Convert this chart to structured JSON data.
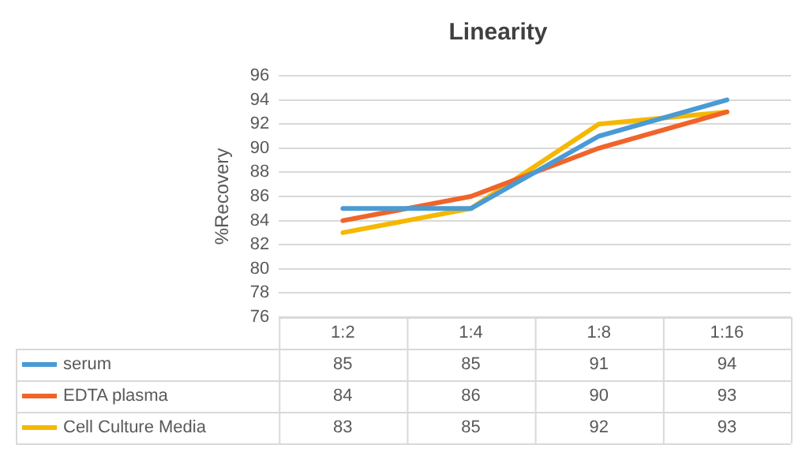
{
  "chart_data": {
    "type": "line",
    "title": "Linearity",
    "ylabel": "%Recovery",
    "categories": [
      "1:2",
      "1:4",
      "1:8",
      "1:16"
    ],
    "series": [
      {
        "name": "serum",
        "color": "#4a9ad4",
        "values": [
          85,
          85,
          91,
          94
        ]
      },
      {
        "name": "EDTA plasma",
        "color": "#f0642a",
        "values": [
          84,
          86,
          90,
          93
        ]
      },
      {
        "name": "Cell Culture Media",
        "color": "#f5b800",
        "values": [
          83,
          85,
          92,
          93
        ]
      }
    ],
    "ylim": [
      76,
      96
    ],
    "yticks": [
      76,
      78,
      80,
      82,
      84,
      86,
      88,
      90,
      92,
      94,
      96
    ],
    "grid": "y",
    "legend": "bottom",
    "data_labels": true,
    "marker": "none",
    "line_style": "solid"
  }
}
